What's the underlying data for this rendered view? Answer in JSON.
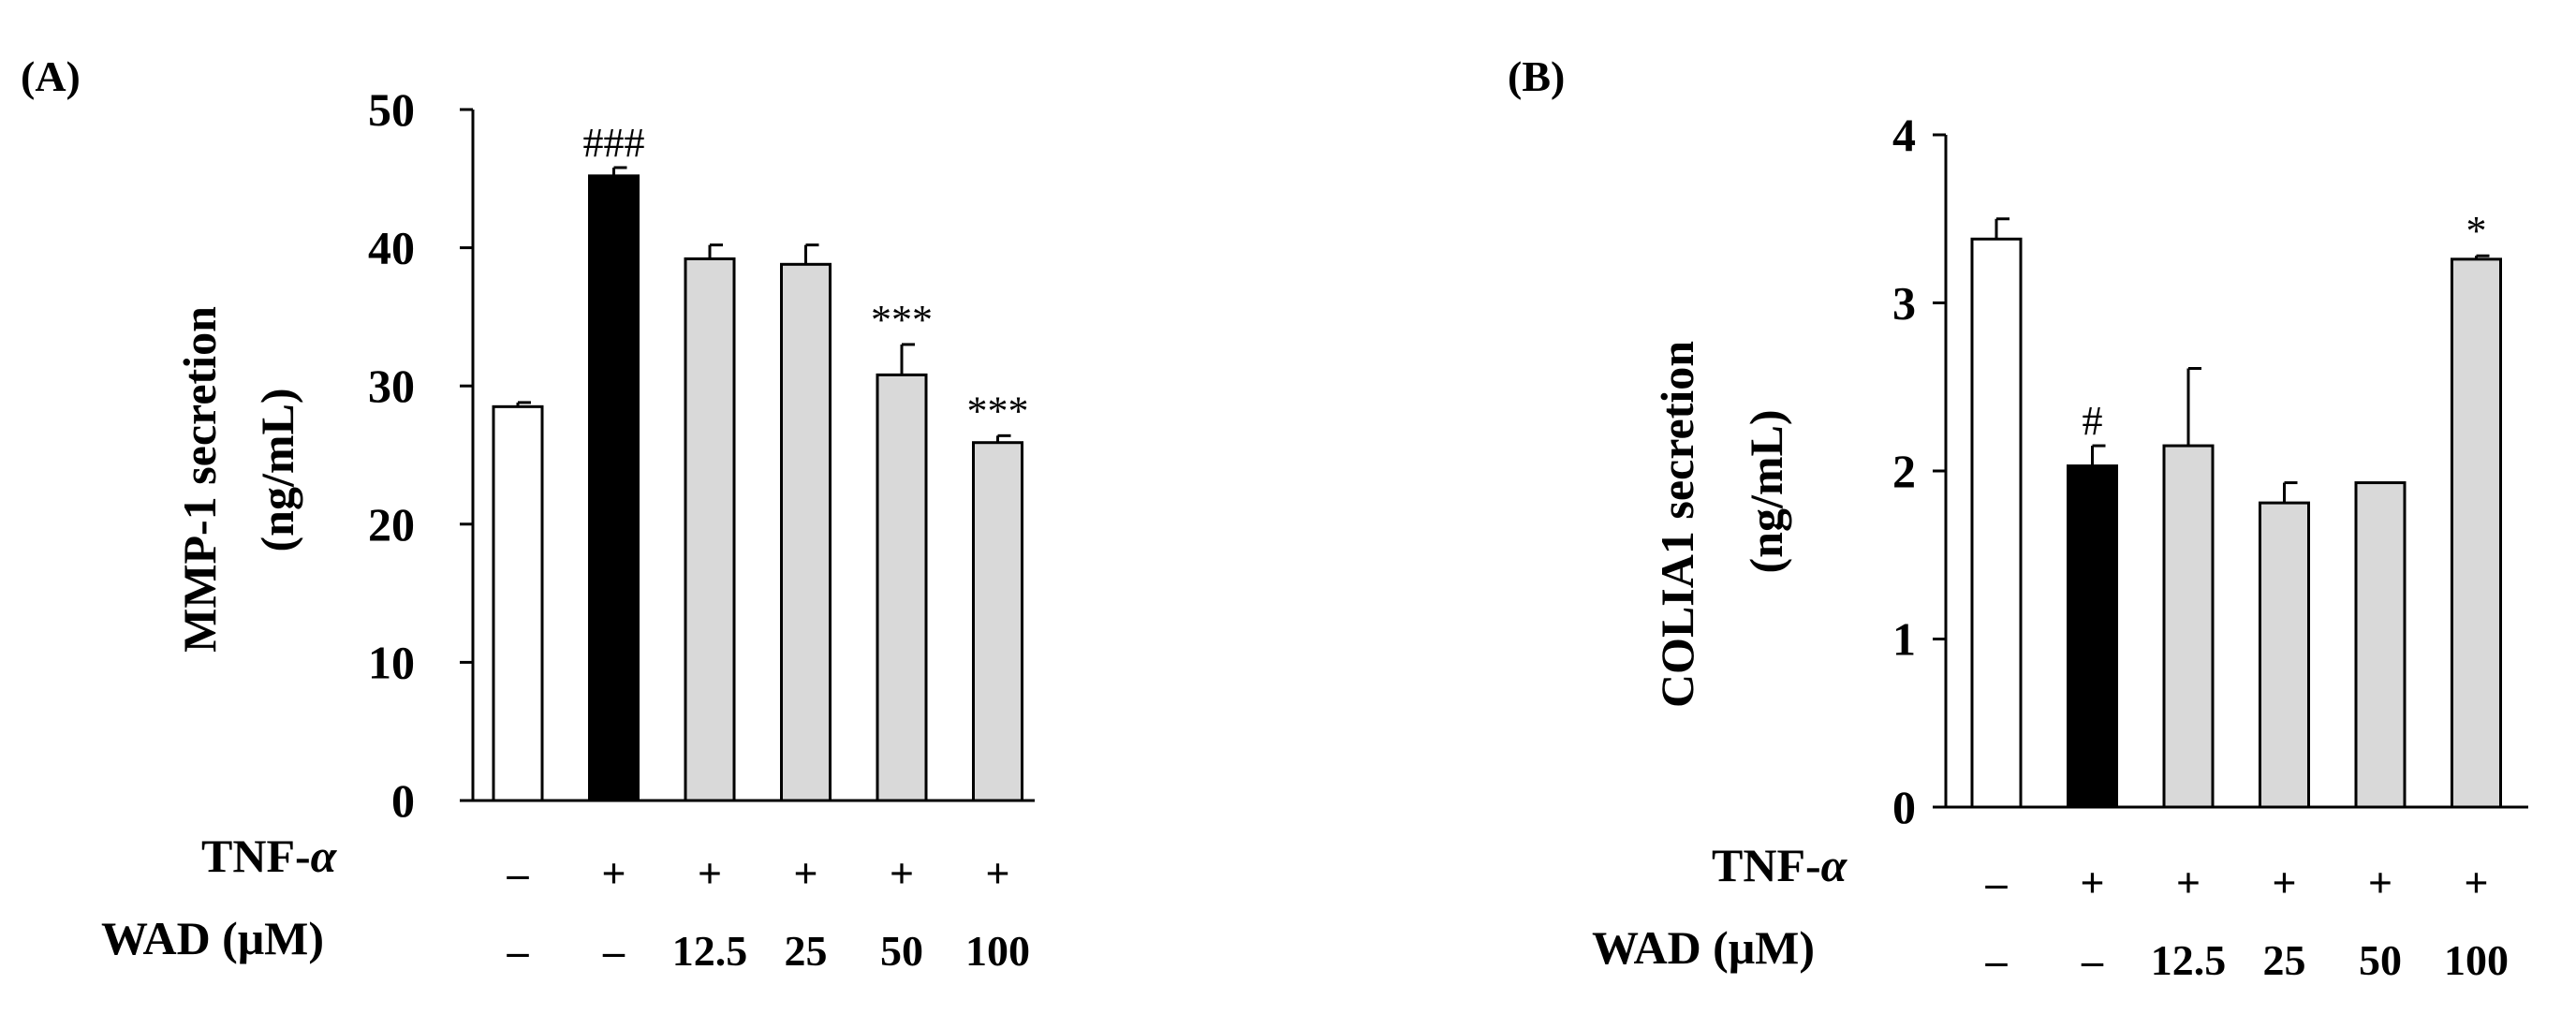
{
  "figure": {
    "row_labels": {
      "tnf": "TNF-",
      "tnf_greek": "α",
      "wad": "WAD (μM)"
    }
  },
  "chart_data": [
    {
      "panel": "(A)",
      "type": "bar",
      "ylabel_line1": "MMP-1 secretion",
      "ylabel_line2": "(ng/mL)",
      "ylim": [
        0,
        50
      ],
      "yticks": [
        0,
        10,
        20,
        30,
        40,
        50
      ],
      "values": [
        28.5,
        45.2,
        39.2,
        38.8,
        30.8,
        25.9
      ],
      "errors": [
        0.3,
        0.6,
        1.0,
        1.4,
        2.2,
        0.5
      ],
      "fills": [
        "#ffffff",
        "#000000",
        "#d9d9d9",
        "#d9d9d9",
        "#d9d9d9",
        "#d9d9d9"
      ],
      "annotations": [
        "",
        "###",
        "",
        "",
        "***",
        "***"
      ],
      "tnf": [
        "–",
        "+",
        "+",
        "+",
        "+",
        "+"
      ],
      "wad": [
        "–",
        "–",
        "12.5",
        "25",
        "50",
        "100"
      ]
    },
    {
      "panel": "(B)",
      "type": "bar",
      "ylabel_line1": "COLIA1 secretion",
      "ylabel_line2": "(ng/mL)",
      "ylim": [
        0,
        4
      ],
      "yticks": [
        0,
        1,
        2,
        3,
        4
      ],
      "values": [
        3.38,
        2.03,
        2.15,
        1.81,
        1.93,
        3.26
      ],
      "errors": [
        0.12,
        0.12,
        0.46,
        0.12,
        0.0,
        0.02
      ],
      "fills": [
        "#ffffff",
        "#000000",
        "#d9d9d9",
        "#d9d9d9",
        "#d9d9d9",
        "#d9d9d9"
      ],
      "annotations": [
        "",
        "#",
        "",
        "",
        "",
        "*"
      ],
      "tnf": [
        "–",
        "+",
        "+",
        "+",
        "+",
        "+"
      ],
      "wad": [
        "–",
        "–",
        "12.5",
        "25",
        "50",
        "100"
      ]
    }
  ]
}
